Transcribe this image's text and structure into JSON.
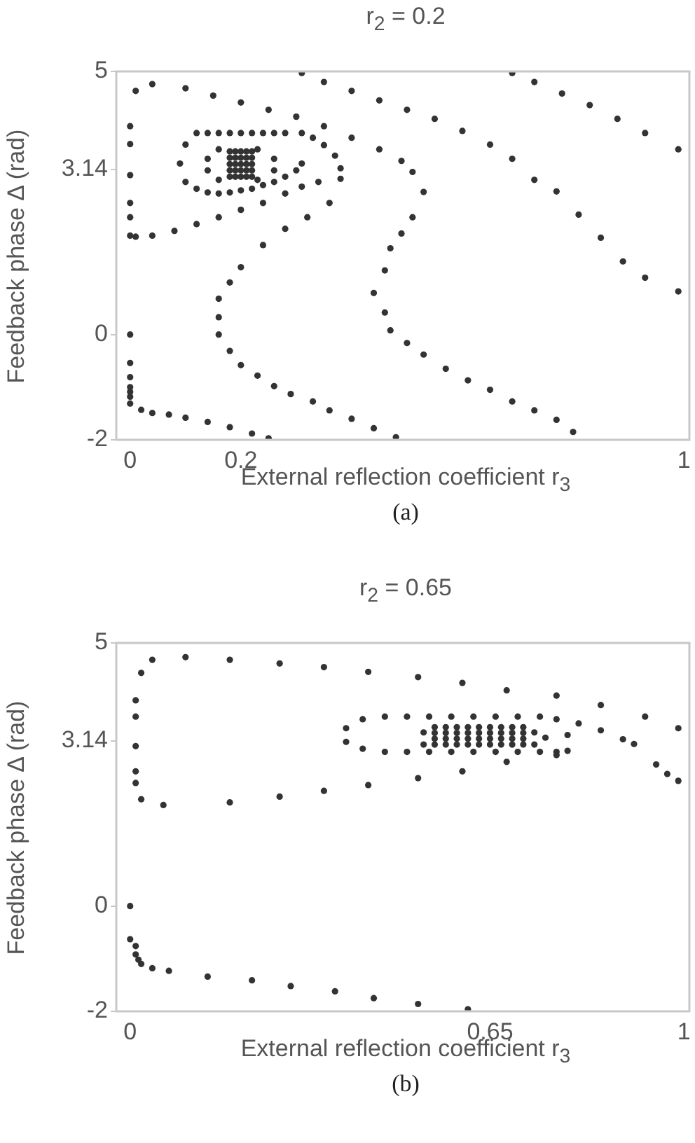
{
  "chart_data": [
    {
      "type": "scatter",
      "title": "r$_{2}$ = 0.2",
      "xlabel": "External reflection coefficient r$_{3}$",
      "ylabel": "Feedback phase Δ (rad)",
      "annotations": [
        "(a)"
      ],
      "marker": "circle",
      "xlim": [
        -0.025,
        1.01
      ],
      "ylim": [
        -2,
        5
      ],
      "xticks": [
        0,
        0.2,
        1
      ],
      "yticks": [
        -2,
        0,
        3.14,
        5
      ],
      "series": [
        {
          "color": "#333333",
          "x": [
            0.31,
            0.35,
            0.4,
            0.45,
            0.5,
            0.55,
            0.6,
            0.65,
            0.69,
            0.73,
            0.77,
            0.81,
            0.85,
            0.89,
            0.93,
            0.99
          ],
          "values": [
            4.97,
            4.8,
            4.63,
            4.45,
            4.27,
            4.1,
            3.87,
            3.61,
            3.34,
            2.94,
            2.72,
            2.28,
            1.84,
            1.39,
            1.08,
            0.82
          ]
        },
        {
          "color": "#333333",
          "x": [
            0.69,
            0.73,
            0.78,
            0.83,
            0.88,
            0.93,
            0.99
          ],
          "values": [
            4.97,
            4.8,
            4.58,
            4.36,
            4.1,
            3.83,
            3.52
          ]
        },
        {
          "color": "#333333",
          "x": [
            0.01,
            0.04,
            0.1,
            0.15,
            0.2,
            0.25,
            0.3,
            0.35,
            0.4,
            0.45,
            0.49,
            0.51,
            0.53,
            0.51,
            0.49,
            0.47,
            0.46,
            0.44,
            0.46,
            0.47,
            0.5,
            0.53,
            0.57,
            0.61,
            0.65,
            0.69,
            0.73,
            0.77,
            0.8
          ],
          "values": [
            4.63,
            4.76,
            4.68,
            4.54,
            4.41,
            4.27,
            4.14,
            3.96,
            3.74,
            3.52,
            3.3,
            3.09,
            2.71,
            2.23,
            1.92,
            1.64,
            1.22,
            0.79,
            0.42,
            0.08,
            -0.16,
            -0.38,
            -0.65,
            -0.87,
            -1.05,
            -1.27,
            -1.44,
            -1.62,
            -1.85
          ]
        },
        {
          "color": "#333333",
          "x": [
            0,
            0,
            0,
            0,
            0,
            0,
            0.01,
            0.04,
            0.08,
            0.12,
            0.16,
            0.2,
            0.24,
            0.28,
            0.31,
            0.34,
            0.38
          ],
          "values": [
            3.96,
            3.62,
            3.03,
            2.5,
            2.23,
            1.88,
            1.86,
            1.88,
            1.97,
            2.1,
            2.23,
            2.37,
            2.5,
            2.68,
            2.81,
            2.9,
            2.96
          ]
        },
        {
          "color": "#333333",
          "x": [
            0.1,
            0.12,
            0.14,
            0.16,
            0.18,
            0.2,
            0.22,
            0.24,
            0.26,
            0.28,
            0.31,
            0.33,
            0.35,
            0.37,
            0.38,
            0.36,
            0.32,
            0.28,
            0.24,
            0.2,
            0.18,
            0.16,
            0.16,
            0.16,
            0.18,
            0.2,
            0.23,
            0.26,
            0.29,
            0.33,
            0.36,
            0.4,
            0.44,
            0.48
          ],
          "values": [
            3.61,
            3.83,
            3.83,
            3.83,
            3.83,
            3.83,
            3.83,
            3.83,
            3.83,
            3.83,
            3.83,
            3.74,
            3.6,
            3.4,
            3.16,
            2.5,
            2.23,
            2.01,
            1.7,
            1.28,
            0.99,
            0.68,
            0.33,
            0,
            -0.31,
            -0.58,
            -0.78,
            -0.98,
            -1.13,
            -1.27,
            -1.44,
            -1.6,
            -1.78,
            -1.95
          ]
        },
        {
          "color": "#333333",
          "x": [
            0.09,
            0.1,
            0.12,
            0.14,
            0.16,
            0.18,
            0.2,
            0.22,
            0.24,
            0.26,
            0.28,
            0.3,
            0.31
          ],
          "values": [
            3.25,
            2.9,
            2.77,
            2.7,
            2.68,
            2.7,
            2.74,
            2.77,
            2.84,
            2.9,
            3.0,
            3.12,
            3.25
          ]
        },
        {
          "color": "#333333",
          "x": [
            0.14,
            0.14,
            0.16,
            0.16,
            0.23,
            0.23,
            0.26,
            0.26
          ],
          "values": [
            3.34,
            3.12,
            3.52,
            2.94,
            3.52,
            2.94,
            3.34,
            3.12
          ]
        },
        {
          "color": "#333333",
          "x": [
            0.18,
            0.19,
            0.2,
            0.21,
            0.22,
            0.18,
            0.19,
            0.2,
            0.21,
            0.22,
            0.18,
            0.19,
            0.2,
            0.21,
            0.22,
            0.18,
            0.19,
            0.2,
            0.21,
            0.22,
            0.18,
            0.19,
            0.2,
            0.21,
            0.22
          ],
          "values": [
            3.48,
            3.48,
            3.48,
            3.48,
            3.48,
            3.36,
            3.36,
            3.36,
            3.36,
            3.36,
            3.24,
            3.24,
            3.24,
            3.24,
            3.24,
            3.12,
            3.12,
            3.12,
            3.12,
            3.12,
            3.0,
            3.0,
            3.0,
            3.0,
            3.0
          ]
        },
        {
          "color": "#333333",
          "x": [
            0,
            0,
            0,
            0,
            0,
            0,
            0,
            0.02,
            0.04,
            0.07,
            0.1,
            0.14,
            0.18,
            0.22,
            0.25
          ],
          "values": [
            0,
            -0.54,
            -0.81,
            -1.0,
            -1.09,
            -1.18,
            -1.31,
            -1.43,
            -1.49,
            -1.52,
            -1.58,
            -1.66,
            -1.76,
            -1.88,
            -1.97
          ]
        }
      ]
    },
    {
      "type": "scatter",
      "title": "r$_{2}$ = 0.65",
      "xlabel": "External reflection coefficient r$_{3}$",
      "ylabel": "Feedback phase Δ (rad)",
      "annotations": [
        "(b)"
      ],
      "marker": "circle",
      "xlim": [
        -0.025,
        1.01
      ],
      "ylim": [
        -2,
        5
      ],
      "xticks": [
        0,
        0.65,
        1
      ],
      "yticks": [
        -2,
        0,
        3.14,
        5
      ],
      "series": [
        {
          "color": "#333333",
          "x": [
            0.01,
            0.01,
            0.01,
            0.01,
            0.01,
            0.02,
            0.04,
            0.1,
            0.18,
            0.27,
            0.35,
            0.43,
            0.52,
            0.6,
            0.68,
            0.77,
            0.85,
            0.93,
            0.99
          ],
          "values": [
            2.34,
            2.56,
            3.04,
            3.6,
            3.91,
            4.43,
            4.68,
            4.73,
            4.68,
            4.61,
            4.54,
            4.45,
            4.35,
            4.24,
            4.1,
            4.0,
            3.82,
            3.6,
            3.38
          ]
        },
        {
          "color": "#333333",
          "x": [
            0.02,
            0.06,
            0.18,
            0.27,
            0.35,
            0.43,
            0.52,
            0.6,
            0.68,
            0.77,
            0.79
          ],
          "values": [
            2.03,
            1.92,
            1.97,
            2.08,
            2.19,
            2.3,
            2.43,
            2.56,
            2.74,
            2.87,
            2.95
          ]
        },
        {
          "color": "#333333",
          "x": [
            0.39,
            0.42,
            0.46,
            0.5,
            0.54,
            0.58,
            0.62,
            0.66,
            0.7,
            0.74,
            0.77,
            0.81,
            0.85,
            0.89,
            0.91,
            0.95,
            0.97,
            0.99
          ],
          "values": [
            3.38,
            3.55,
            3.6,
            3.6,
            3.6,
            3.6,
            3.6,
            3.6,
            3.6,
            3.6,
            3.55,
            3.47,
            3.34,
            3.17,
            3.08,
            2.69,
            2.51,
            2.38
          ]
        },
        {
          "color": "#333333",
          "x": [
            0.39,
            0.42,
            0.46,
            0.5,
            0.54,
            0.58,
            0.62,
            0.66,
            0.7,
            0.74,
            0.77,
            0.79
          ],
          "values": [
            3.12,
            2.99,
            2.93,
            2.93,
            2.93,
            2.93,
            2.93,
            2.93,
            2.93,
            2.93,
            2.93,
            3.25
          ]
        },
        {
          "color": "#333333",
          "x": [
            0.55,
            0.57,
            0.59,
            0.61,
            0.63,
            0.65,
            0.67,
            0.69,
            0.71,
            0.55,
            0.57,
            0.59,
            0.61,
            0.63,
            0.65,
            0.67,
            0.69,
            0.71,
            0.55,
            0.57,
            0.59,
            0.61,
            0.63,
            0.65,
            0.67,
            0.69,
            0.71,
            0.55,
            0.57,
            0.59,
            0.61,
            0.63,
            0.65,
            0.67,
            0.69,
            0.71,
            0.53,
            0.53,
            0.73,
            0.73,
            0.75
          ],
          "values": [
            3.4,
            3.4,
            3.4,
            3.4,
            3.4,
            3.4,
            3.4,
            3.4,
            3.4,
            3.29,
            3.29,
            3.29,
            3.29,
            3.29,
            3.29,
            3.29,
            3.29,
            3.29,
            3.18,
            3.18,
            3.18,
            3.18,
            3.18,
            3.18,
            3.18,
            3.18,
            3.18,
            3.07,
            3.07,
            3.07,
            3.07,
            3.07,
            3.07,
            3.07,
            3.07,
            3.07,
            3.3,
            3.07,
            3.3,
            3.07,
            3.2
          ]
        },
        {
          "color": "#333333",
          "x": [
            0,
            0,
            0.01,
            0.01,
            0.015,
            0.02,
            0.04,
            0.07,
            0.14,
            0.22,
            0.29,
            0.37,
            0.44,
            0.52,
            0.61
          ],
          "values": [
            0,
            -0.63,
            -0.76,
            -0.92,
            -1.02,
            -1.1,
            -1.18,
            -1.23,
            -1.34,
            -1.41,
            -1.52,
            -1.62,
            -1.75,
            -1.86,
            -1.96
          ]
        }
      ]
    }
  ]
}
